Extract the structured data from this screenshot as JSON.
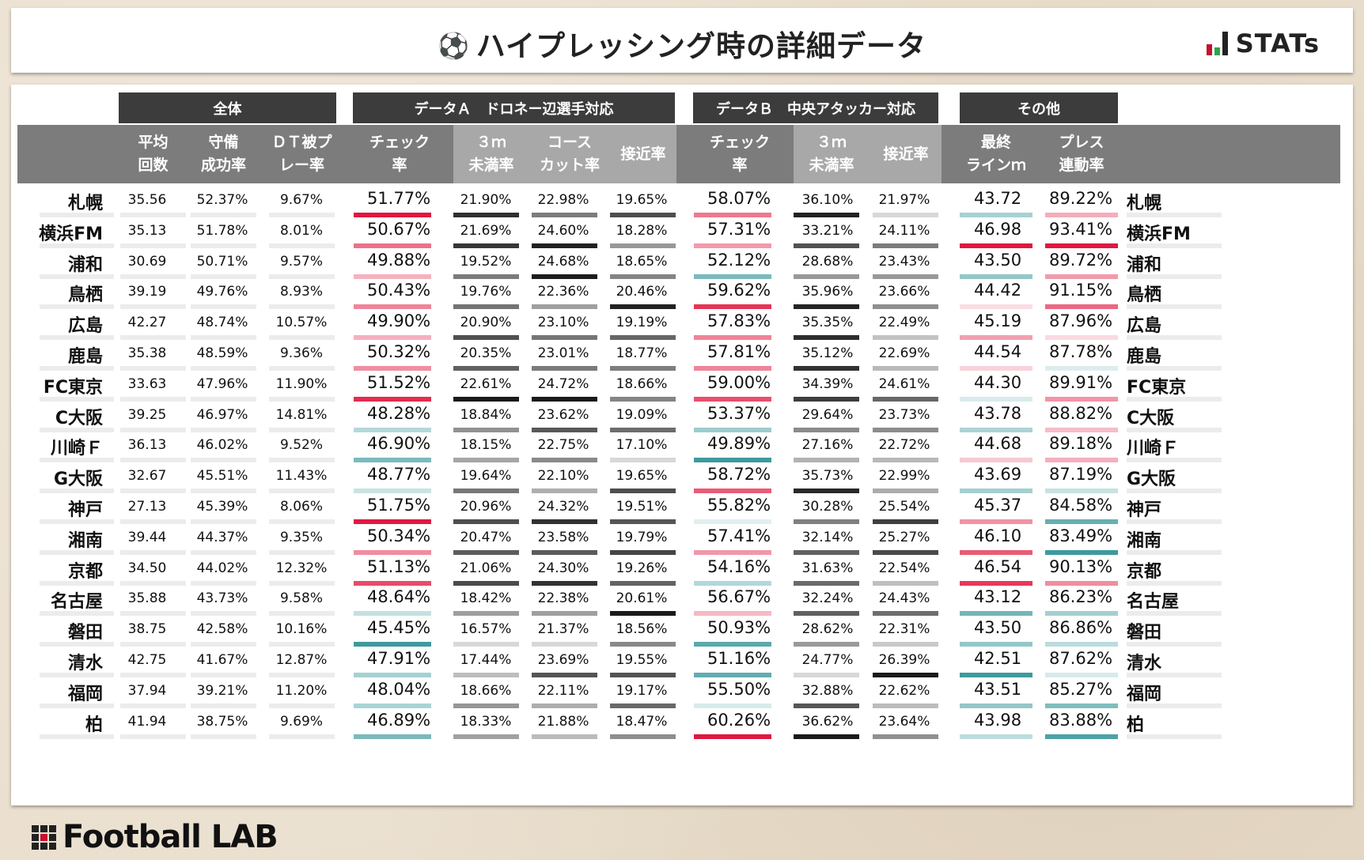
{
  "header": {
    "title": "ハイプレッシング時の詳細データ",
    "logo_text": "STATs"
  },
  "groups": [
    "全体",
    "データＡ　ドロネー辺選手対応",
    "データＢ　中央アタッカー対応",
    "その他"
  ],
  "columns": [
    [
      "平均",
      "回数"
    ],
    [
      "守備",
      "成功率"
    ],
    [
      "ＤＴ被プ",
      "レー率"
    ],
    [
      "チェック",
      "率"
    ],
    [
      "３ｍ",
      "未満率"
    ],
    [
      "コース",
      "カット率"
    ],
    [
      "接近率"
    ],
    [
      "チェック",
      "率"
    ],
    [
      "３ｍ",
      "未満率"
    ],
    [
      "接近率"
    ],
    [
      "最終",
      "ラインｍ"
    ],
    [
      "プレス",
      "連動率"
    ]
  ],
  "rows": [
    {
      "team": "札幌",
      "v": [
        "35.56",
        "52.37%",
        "9.67%",
        "51.77%",
        "21.90%",
        "22.98%",
        "19.65%",
        "58.07%",
        "36.10%",
        "21.97%",
        "43.72",
        "89.22%"
      ]
    },
    {
      "team": "横浜FM",
      "v": [
        "35.13",
        "51.78%",
        "8.01%",
        "50.67%",
        "21.69%",
        "24.60%",
        "18.28%",
        "57.31%",
        "33.21%",
        "24.11%",
        "46.98",
        "93.41%"
      ]
    },
    {
      "team": "浦和",
      "v": [
        "30.69",
        "50.71%",
        "9.57%",
        "49.88%",
        "19.52%",
        "24.68%",
        "18.65%",
        "52.12%",
        "28.68%",
        "23.43%",
        "43.50",
        "89.72%"
      ]
    },
    {
      "team": "鳥栖",
      "v": [
        "39.19",
        "49.76%",
        "8.93%",
        "50.43%",
        "19.76%",
        "22.36%",
        "20.46%",
        "59.62%",
        "35.96%",
        "23.66%",
        "44.42",
        "91.15%"
      ]
    },
    {
      "team": "広島",
      "v": [
        "42.27",
        "48.74%",
        "10.57%",
        "49.90%",
        "20.90%",
        "23.10%",
        "19.19%",
        "57.83%",
        "35.35%",
        "22.49%",
        "45.19",
        "87.96%"
      ]
    },
    {
      "team": "鹿島",
      "v": [
        "35.38",
        "48.59%",
        "9.36%",
        "50.32%",
        "20.35%",
        "23.01%",
        "18.77%",
        "57.81%",
        "35.12%",
        "22.69%",
        "44.54",
        "87.78%"
      ]
    },
    {
      "team": "FC東京",
      "v": [
        "33.63",
        "47.96%",
        "11.90%",
        "51.52%",
        "22.61%",
        "24.72%",
        "18.66%",
        "59.00%",
        "34.39%",
        "24.61%",
        "44.30",
        "89.91%"
      ]
    },
    {
      "team": "C大阪",
      "v": [
        "39.25",
        "46.97%",
        "14.81%",
        "48.28%",
        "18.84%",
        "23.62%",
        "19.09%",
        "53.37%",
        "29.64%",
        "23.73%",
        "43.78",
        "88.82%"
      ]
    },
    {
      "team": "川崎Ｆ",
      "v": [
        "36.13",
        "46.02%",
        "9.52%",
        "46.90%",
        "18.15%",
        "22.75%",
        "17.10%",
        "49.89%",
        "27.16%",
        "22.72%",
        "44.68",
        "89.18%"
      ]
    },
    {
      "team": "G大阪",
      "v": [
        "32.67",
        "45.51%",
        "11.43%",
        "48.77%",
        "19.64%",
        "22.10%",
        "19.65%",
        "58.72%",
        "35.73%",
        "22.99%",
        "43.69",
        "87.19%"
      ]
    },
    {
      "team": "神戸",
      "v": [
        "27.13",
        "45.39%",
        "8.06%",
        "51.75%",
        "20.96%",
        "24.32%",
        "19.51%",
        "55.82%",
        "30.28%",
        "25.54%",
        "45.37",
        "84.58%"
      ]
    },
    {
      "team": "湘南",
      "v": [
        "39.44",
        "44.37%",
        "9.35%",
        "50.34%",
        "20.47%",
        "23.58%",
        "19.79%",
        "57.41%",
        "32.14%",
        "25.27%",
        "46.10",
        "83.49%"
      ]
    },
    {
      "team": "京都",
      "v": [
        "34.50",
        "44.02%",
        "12.32%",
        "51.13%",
        "21.06%",
        "24.30%",
        "19.26%",
        "54.16%",
        "31.63%",
        "22.54%",
        "46.54",
        "90.13%"
      ]
    },
    {
      "team": "名古屋",
      "v": [
        "35.88",
        "43.73%",
        "9.58%",
        "48.64%",
        "18.42%",
        "22.38%",
        "20.61%",
        "56.67%",
        "32.24%",
        "24.43%",
        "43.12",
        "86.23%"
      ]
    },
    {
      "team": "磐田",
      "v": [
        "38.75",
        "42.58%",
        "10.16%",
        "45.45%",
        "16.57%",
        "21.37%",
        "18.56%",
        "50.93%",
        "28.62%",
        "22.31%",
        "43.50",
        "86.86%"
      ]
    },
    {
      "team": "清水",
      "v": [
        "42.75",
        "41.67%",
        "12.87%",
        "47.91%",
        "17.44%",
        "23.69%",
        "19.55%",
        "51.16%",
        "24.77%",
        "26.39%",
        "42.51",
        "87.62%"
      ]
    },
    {
      "team": "福岡",
      "v": [
        "37.94",
        "39.21%",
        "11.20%",
        "48.04%",
        "18.66%",
        "22.11%",
        "19.17%",
        "55.50%",
        "32.88%",
        "22.62%",
        "43.51",
        "85.27%"
      ]
    },
    {
      "team": "柏",
      "v": [
        "41.94",
        "38.75%",
        "9.69%",
        "46.89%",
        "18.33%",
        "21.88%",
        "18.47%",
        "60.26%",
        "36.62%",
        "23.64%",
        "43.98",
        "83.88%"
      ]
    }
  ],
  "colors": {
    "diverging": [
      "#3e9a9e",
      "#ffffff",
      "#e0173f"
    ],
    "gray_scale": [
      "#d8d8d8",
      "#1a1a1a"
    ],
    "group_header": "#3c3c3c",
    "column_header": "#7c7c7c",
    "column_header_light": "#a8a8a8",
    "stats_logo_bars": [
      "#c8102e",
      "#2fa34a",
      "#222222"
    ]
  },
  "footer": {
    "brand": "Football LAB"
  }
}
